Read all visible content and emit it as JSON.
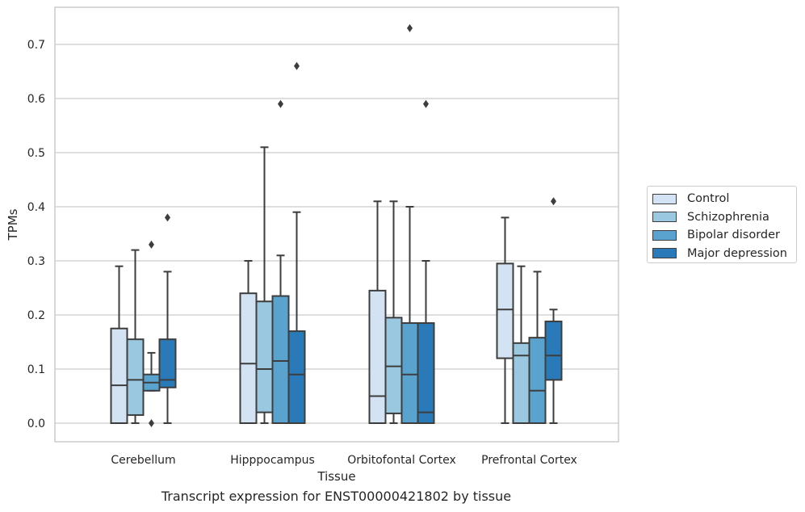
{
  "chart_data": {
    "type": "boxplot",
    "title": "",
    "caption": "Transcript expression for ENST00000421802 by tissue",
    "xlabel": "Tissue",
    "ylabel": "TPMs",
    "ylim": [
      -0.035,
      0.77
    ],
    "yticks": [
      0.0,
      0.1,
      0.2,
      0.3,
      0.4,
      0.5,
      0.6,
      0.7
    ],
    "ytick_labels": [
      "0.0",
      "0.1",
      "0.2",
      "0.3",
      "0.4",
      "0.5",
      "0.6",
      "0.7"
    ],
    "grid": "horizontal",
    "legend_position": "right",
    "categories": [
      "Cerebellum",
      "Hipppocampus",
      "Orbitofontal Cortex",
      "Prefrontal Cortex"
    ],
    "series": [
      {
        "name": "Control",
        "color": "#d3e3f3",
        "boxes": [
          {
            "whislo": 0.0,
            "q1": 0.0,
            "med": 0.07,
            "q3": 0.175,
            "whishi": 0.29,
            "fliers": []
          },
          {
            "whislo": 0.0,
            "q1": 0.0,
            "med": 0.11,
            "q3": 0.24,
            "whishi": 0.3,
            "fliers": []
          },
          {
            "whislo": 0.0,
            "q1": 0.0,
            "med": 0.05,
            "q3": 0.245,
            "whishi": 0.41,
            "fliers": []
          },
          {
            "whislo": 0.0,
            "q1": 0.12,
            "med": 0.21,
            "q3": 0.295,
            "whishi": 0.38,
            "fliers": []
          }
        ]
      },
      {
        "name": "Schizophrenia",
        "color": "#9ac8e0",
        "boxes": [
          {
            "whislo": 0.0,
            "q1": 0.015,
            "med": 0.08,
            "q3": 0.155,
            "whishi": 0.32,
            "fliers": []
          },
          {
            "whislo": 0.0,
            "q1": 0.02,
            "med": 0.1,
            "q3": 0.225,
            "whishi": 0.51,
            "fliers": []
          },
          {
            "whislo": 0.0,
            "q1": 0.018,
            "med": 0.105,
            "q3": 0.195,
            "whishi": 0.41,
            "fliers": []
          },
          {
            "whislo": 0.0,
            "q1": 0.0,
            "med": 0.125,
            "q3": 0.148,
            "whishi": 0.29,
            "fliers": []
          }
        ]
      },
      {
        "name": "Bipolar disorder",
        "color": "#5ba3cf",
        "boxes": [
          {
            "whislo": 0.06,
            "q1": 0.06,
            "med": 0.075,
            "q3": 0.09,
            "whishi": 0.13,
            "fliers": [
              0.33,
              0.0
            ]
          },
          {
            "whislo": 0.0,
            "q1": 0.0,
            "med": 0.115,
            "q3": 0.235,
            "whishi": 0.31,
            "fliers": [
              0.59
            ]
          },
          {
            "whislo": 0.0,
            "q1": 0.0,
            "med": 0.09,
            "q3": 0.185,
            "whishi": 0.4,
            "fliers": [
              0.73
            ]
          },
          {
            "whislo": 0.0,
            "q1": 0.0,
            "med": 0.06,
            "q3": 0.158,
            "whishi": 0.28,
            "fliers": []
          }
        ]
      },
      {
        "name": "Major depression",
        "color": "#2a7ab9",
        "boxes": [
          {
            "whislo": 0.0,
            "q1": 0.066,
            "med": 0.08,
            "q3": 0.155,
            "whishi": 0.28,
            "fliers": [
              0.38
            ]
          },
          {
            "whislo": 0.0,
            "q1": 0.0,
            "med": 0.09,
            "q3": 0.17,
            "whishi": 0.39,
            "fliers": [
              0.66
            ]
          },
          {
            "whislo": 0.0,
            "q1": 0.0,
            "med": 0.02,
            "q3": 0.185,
            "whishi": 0.3,
            "fliers": [
              0.59
            ]
          },
          {
            "whislo": 0.0,
            "q1": 0.08,
            "med": 0.125,
            "q3": 0.188,
            "whishi": 0.21,
            "fliers": [
              0.41
            ]
          }
        ]
      }
    ]
  }
}
